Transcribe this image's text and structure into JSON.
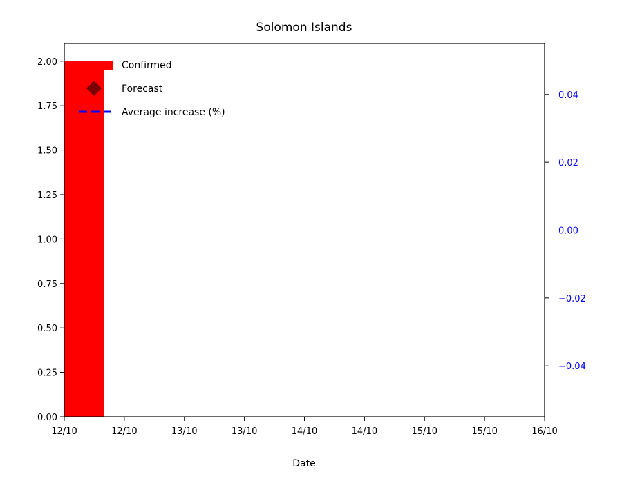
{
  "chart_data": {
    "type": "bar",
    "title": "Solomon Islands",
    "xlabel": "Date",
    "ylabel": "",
    "x_ticks": [
      "12/10",
      "12/10",
      "13/10",
      "13/10",
      "14/10",
      "14/10",
      "15/10",
      "15/10",
      "16/10"
    ],
    "x_range": [
      0,
      4
    ],
    "ylim": [
      0,
      2.1
    ],
    "y_ticks": [
      "0.00",
      "0.25",
      "0.50",
      "0.75",
      "1.00",
      "1.25",
      "1.50",
      "1.75",
      "2.00"
    ],
    "y2lim": [
      -0.055,
      0.055
    ],
    "y2_ticks": [
      "−0.04",
      "−0.02",
      "0.00",
      "0.02",
      "0.04"
    ],
    "y2_color": "#0000ff",
    "bars": [
      {
        "x": 0,
        "width": 0.33,
        "value": 2,
        "color": "#ff0000"
      }
    ],
    "legend": {
      "placement": "top-left",
      "entries": [
        {
          "label": "Confirmed",
          "marker": "bar",
          "color": "#ff0000"
        },
        {
          "label": "Forecast",
          "marker": "diamond",
          "color": "#7b0000"
        },
        {
          "label": "Average increase (%)",
          "marker": "dashed-line",
          "color": "#0000ff"
        }
      ]
    },
    "grid": false
  }
}
